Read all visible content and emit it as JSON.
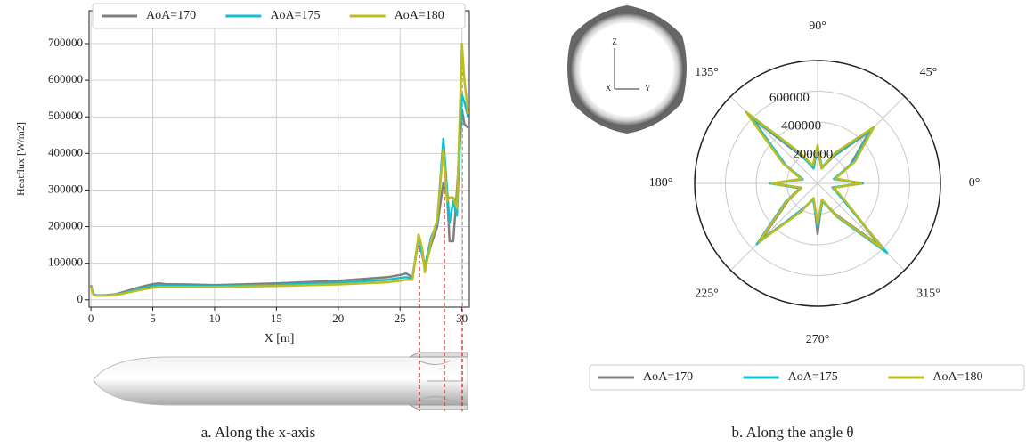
{
  "chart_data": [
    {
      "type": "line",
      "xlabel": "X [m]",
      "ylabel": "Heatflux [W/m2]",
      "legend": "upper center",
      "grid": true,
      "caption": "a.    Along the x-axis",
      "xlim": [
        -0.15,
        30.6
      ],
      "ylim": [
        -20000,
        790000
      ],
      "xticks": [
        0,
        5,
        10,
        15,
        20,
        25,
        30
      ],
      "yticks": [
        0,
        100000,
        200000,
        300000,
        400000,
        500000,
        600000,
        700000
      ],
      "x": [
        0,
        0.2,
        0.5,
        1,
        2,
        3,
        4,
        5,
        5.5,
        6,
        8,
        10,
        15,
        20,
        24,
        25,
        25.5,
        26,
        26.5,
        26.8,
        27,
        27.5,
        28,
        28.5,
        28.8,
        29,
        29.3,
        29.6,
        30,
        30.2,
        30.5
      ],
      "series": [
        {
          "name": "AoA=170",
          "color": "#7f7f7f",
          "values": [
            40000,
            15000,
            12000,
            12000,
            15000,
            25000,
            35000,
            43000,
            45000,
            43000,
            42000,
            40000,
            45000,
            52000,
            62000,
            68000,
            72000,
            62000,
            165000,
            130000,
            85000,
            150000,
            200000,
            320000,
            290000,
            160000,
            160000,
            300000,
            520000,
            480000,
            470000
          ]
        },
        {
          "name": "AoA=175",
          "color": "#17becf",
          "values": [
            38000,
            14000,
            12000,
            11000,
            14000,
            22000,
            30000,
            38000,
            40000,
            39000,
            38000,
            37000,
            41000,
            47000,
            55000,
            60000,
            62000,
            58000,
            175000,
            120000,
            90000,
            170000,
            210000,
            440000,
            300000,
            210000,
            270000,
            230000,
            560000,
            540000,
            500000
          ]
        },
        {
          "name": "AoA=180",
          "color": "#bcbd22",
          "values": [
            36000,
            13000,
            11000,
            11000,
            13000,
            20000,
            27000,
            33000,
            35000,
            35000,
            35000,
            35000,
            38000,
            42000,
            48000,
            52000,
            55000,
            55000,
            178000,
            140000,
            75000,
            160000,
            220000,
            410000,
            270000,
            280000,
            280000,
            250000,
            700000,
            600000,
            510000
          ]
        }
      ]
    },
    {
      "type": "polar",
      "legend": "lower center",
      "grid": true,
      "caption": "b.    Along the angle θ",
      "rlim": [
        0,
        800000
      ],
      "rticks": [
        200000,
        400000,
        600000
      ],
      "thetaticks": [
        {
          "value": 0,
          "label": "0°"
        },
        {
          "value": 45,
          "label": "45°"
        },
        {
          "value": 90,
          "label": "90°"
        },
        {
          "value": 135,
          "label": "135°"
        },
        {
          "value": 180,
          "label": "180°"
        },
        {
          "value": 225,
          "label": "225°"
        },
        {
          "value": 270,
          "label": "270°"
        },
        {
          "value": 315,
          "label": "315°"
        }
      ],
      "theta": [
        0,
        15,
        30,
        45,
        60,
        75,
        90,
        105,
        120,
        135,
        150,
        165,
        180,
        195,
        210,
        225,
        240,
        255,
        270,
        285,
        300,
        315,
        330,
        345,
        360
      ],
      "series": [
        {
          "name": "AoA=170",
          "color": "#7f7f7f",
          "values": [
            280000,
            120000,
            250000,
            480000,
            200000,
            100000,
            230000,
            110000,
            200000,
            600000,
            250000,
            110000,
            300000,
            110000,
            220000,
            520000,
            200000,
            100000,
            330000,
            110000,
            230000,
            580000,
            180000,
            110000,
            280000
          ]
        },
        {
          "name": "AoA=175",
          "color": "#17becf",
          "values": [
            300000,
            110000,
            260000,
            500000,
            210000,
            110000,
            240000,
            100000,
            220000,
            620000,
            240000,
            100000,
            310000,
            120000,
            240000,
            560000,
            190000,
            110000,
            280000,
            120000,
            250000,
            640000,
            170000,
            100000,
            300000
          ]
        },
        {
          "name": "AoA=180",
          "color": "#bcbd22",
          "values": [
            290000,
            120000,
            280000,
            520000,
            230000,
            100000,
            250000,
            120000,
            230000,
            660000,
            260000,
            110000,
            300000,
            110000,
            230000,
            540000,
            210000,
            100000,
            260000,
            110000,
            240000,
            600000,
            190000,
            110000,
            290000
          ]
        }
      ]
    }
  ],
  "inset_axes": [
    "Z",
    "Y",
    "X"
  ]
}
